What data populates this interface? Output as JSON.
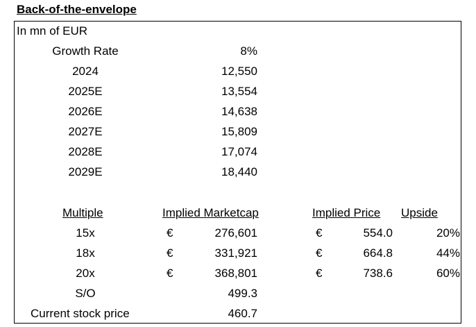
{
  "title": "Back-of-the-envelope",
  "units": "In mn of EUR",
  "growth": {
    "label": "Growth Rate",
    "value": "8%"
  },
  "projections": [
    {
      "year": "2024",
      "value": "12,550"
    },
    {
      "year": "2025E",
      "value": "13,554"
    },
    {
      "year": "2026E",
      "value": "14,638"
    },
    {
      "year": "2027E",
      "value": "15,809"
    },
    {
      "year": "2028E",
      "value": "17,074"
    },
    {
      "year": "2029E",
      "value": "18,440"
    }
  ],
  "valuation": {
    "headers": {
      "multiple": "Multiple",
      "marketcap": "Implied Marketcap",
      "price": "Implied Price",
      "upside": "Upside"
    },
    "currency": "€",
    "rows": [
      {
        "multiple": "15x",
        "marketcap": "276,601",
        "price": "554.0",
        "upside": "20%"
      },
      {
        "multiple": "18x",
        "marketcap": "331,921",
        "price": "664.8",
        "upside": "44%"
      },
      {
        "multiple": "20x",
        "marketcap": "368,801",
        "price": "738.6",
        "upside": "60%"
      }
    ],
    "so": {
      "label": "S/O",
      "value": "499.3"
    },
    "current_price": {
      "label": "Current stock price",
      "value": "460.7"
    }
  }
}
